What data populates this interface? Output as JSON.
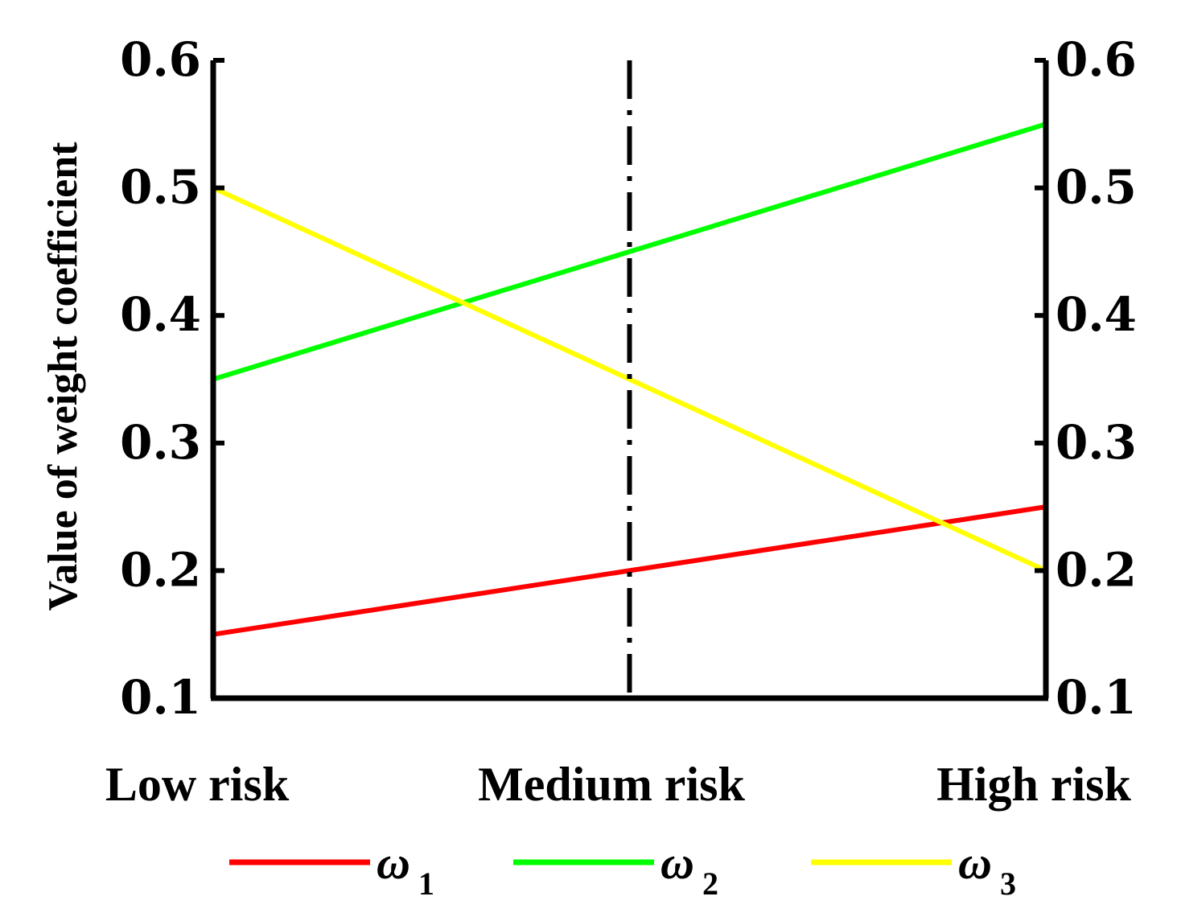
{
  "chart_data": {
    "type": "line",
    "categories": [
      "Low risk",
      "Medium risk",
      "High risk"
    ],
    "ylabel": "Value of weight coefficient",
    "ylim": [
      0.1,
      0.6
    ],
    "yticks": [
      "0.1",
      "0.2",
      "0.3",
      "0.4",
      "0.5",
      "0.6"
    ],
    "y2ticks": [
      "0.1",
      "0.2",
      "0.3",
      "0.4",
      "0.5",
      "0.6"
    ],
    "divider_at_category": "Medium risk",
    "grid": false,
    "legend_position": "bottom",
    "series": [
      {
        "name": "ω",
        "subscript": "1",
        "color": "#ff0000",
        "values": [
          0.15,
          0.2,
          0.25
        ]
      },
      {
        "name": "ω",
        "subscript": "2",
        "color": "#00ff00",
        "values": [
          0.35,
          0.45,
          0.55
        ]
      },
      {
        "name": "ω",
        "subscript": "3",
        "color": "#ffff00",
        "values": [
          0.5,
          0.35,
          0.2
        ]
      }
    ]
  }
}
